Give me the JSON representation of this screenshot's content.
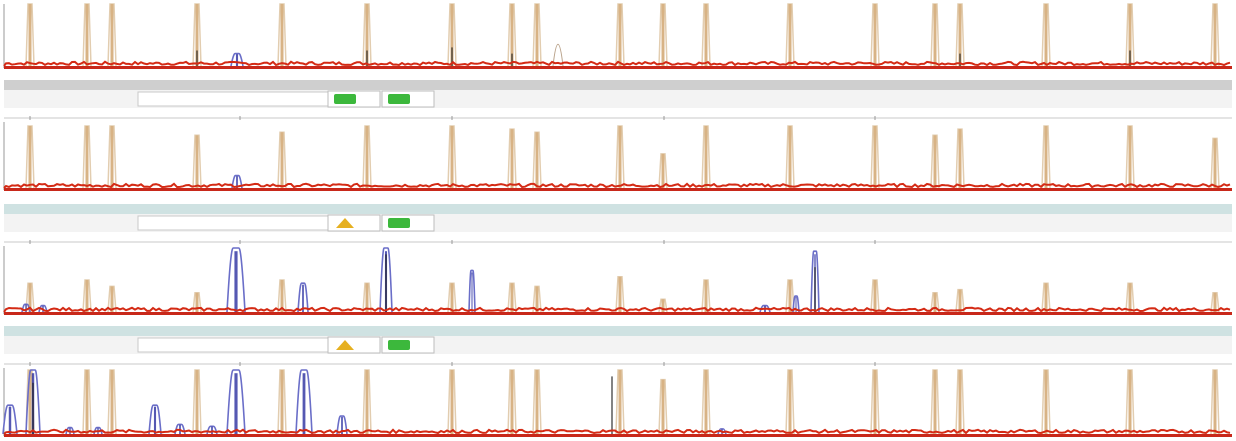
{
  "window": {
    "title": ""
  },
  "colors": {
    "ladder": "#d8b385",
    "ladder_outline": "#e2cdb0",
    "baseline": "#d42a14",
    "sample": "#2b2fa0",
    "sample_light": "#6a6ec8",
    "dark_peak": "#222222",
    "status_ok": "#3cb83c",
    "status_warn": "#e6b020",
    "header_band": "#cfcfcf",
    "header_band_alt": "#cfe2e2"
  },
  "headers": [
    {
      "name_field": "",
      "sizing_status": "ok",
      "peak_status": "ok"
    },
    {
      "name_field": "",
      "sizing_status": "warning",
      "peak_status": "ok"
    },
    {
      "name_field": "",
      "sizing_status": "warning",
      "peak_status": "ok"
    }
  ],
  "axis_ticks": [
    "",
    "",
    ""
  ],
  "panels": [
    {
      "name": "panel-1",
      "size_standard": {
        "x": [
          30,
          87,
          112,
          197,
          282,
          367,
          452,
          512,
          537,
          620,
          663,
          706,
          790,
          875,
          935,
          960,
          1046,
          1130,
          1215
        ],
        "h": [
          1,
          1,
          1,
          1,
          1,
          1,
          1,
          1,
          1,
          1,
          1,
          1,
          1,
          1,
          1,
          1,
          1,
          1,
          1
        ]
      },
      "sample_peaks": [
        {
          "x": 237,
          "h": 0.2,
          "w": 6
        }
      ],
      "dark_peaks": [
        {
          "x": 197,
          "h": 0.25
        },
        {
          "x": 367,
          "h": 0.25
        },
        {
          "x": 452,
          "h": 0.3
        },
        {
          "x": 512,
          "h": 0.2
        },
        {
          "x": 960,
          "h": 0.2
        },
        {
          "x": 1130,
          "h": 0.25
        }
      ],
      "ghost_peaks": [
        {
          "x": 558,
          "h": 0.35,
          "w": 5
        }
      ]
    },
    {
      "name": "panel-2",
      "size_standard": {
        "x": [
          30,
          87,
          112,
          197,
          282,
          367,
          452,
          512,
          537,
          620,
          663,
          706,
          790,
          875,
          935,
          960,
          1046,
          1130,
          1215
        ],
        "h": [
          1,
          1,
          1,
          0.85,
          0.9,
          1,
          1,
          0.95,
          0.9,
          1,
          0.55,
          1,
          1,
          1,
          0.85,
          0.95,
          1,
          1,
          0.8
        ]
      },
      "sample_peaks": [
        {
          "x": 237,
          "h": 0.2,
          "w": 5
        }
      ],
      "dark_peaks": [],
      "ghost_peaks": []
    },
    {
      "name": "panel-3",
      "size_standard": {
        "x": [
          30,
          87,
          112,
          197,
          282,
          367,
          452,
          512,
          537,
          620,
          663,
          706,
          790,
          875,
          935,
          960,
          1046,
          1130,
          1215
        ],
        "h": [
          0.45,
          0.5,
          0.4,
          0.3,
          0.5,
          0.45,
          0.45,
          0.45,
          0.4,
          0.55,
          0.2,
          0.5,
          0.5,
          0.5,
          0.3,
          0.35,
          0.45,
          0.45,
          0.3
        ]
      },
      "sample_peaks": [
        {
          "x": 26,
          "h": 0.12,
          "w": 4
        },
        {
          "x": 43,
          "h": 0.1,
          "w": 4
        },
        {
          "x": 236,
          "h": 1.0,
          "w": 9
        },
        {
          "x": 303,
          "h": 0.45,
          "w": 5
        },
        {
          "x": 386,
          "h": 1.0,
          "w": 6
        },
        {
          "x": 472,
          "h": 0.65,
          "w": 3
        },
        {
          "x": 765,
          "h": 0.1,
          "w": 5
        },
        {
          "x": 796,
          "h": 0.25,
          "w": 3
        },
        {
          "x": 815,
          "h": 0.95,
          "w": 4
        }
      ],
      "dark_peaks": [
        {
          "x": 815,
          "h": 0.7
        },
        {
          "x": 386,
          "h": 0.9
        }
      ],
      "ghost_peaks": []
    },
    {
      "name": "panel-4",
      "size_standard": {
        "x": [
          30,
          87,
          112,
          197,
          282,
          367,
          452,
          512,
          537,
          620,
          663,
          706,
          790,
          875,
          935,
          960,
          1046,
          1130,
          1215
        ],
        "h": [
          1,
          1,
          1,
          1,
          1,
          1,
          1,
          1,
          1,
          1,
          0.85,
          1,
          1,
          1,
          1,
          1,
          1,
          1,
          1
        ]
      },
      "sample_peaks": [
        {
          "x": 10,
          "h": 0.45,
          "w": 7
        },
        {
          "x": 33,
          "h": 1.0,
          "w": 7
        },
        {
          "x": 70,
          "h": 0.1,
          "w": 4
        },
        {
          "x": 98,
          "h": 0.1,
          "w": 4
        },
        {
          "x": 155,
          "h": 0.45,
          "w": 6
        },
        {
          "x": 180,
          "h": 0.15,
          "w": 5
        },
        {
          "x": 212,
          "h": 0.12,
          "w": 5
        },
        {
          "x": 236,
          "h": 1.0,
          "w": 9
        },
        {
          "x": 304,
          "h": 1.0,
          "w": 8
        },
        {
          "x": 342,
          "h": 0.28,
          "w": 5
        },
        {
          "x": 722,
          "h": 0.08,
          "w": 4
        }
      ],
      "dark_peaks": [
        {
          "x": 612,
          "h": 0.9
        },
        {
          "x": 33,
          "h": 0.8
        }
      ],
      "ghost_peaks": []
    }
  ]
}
